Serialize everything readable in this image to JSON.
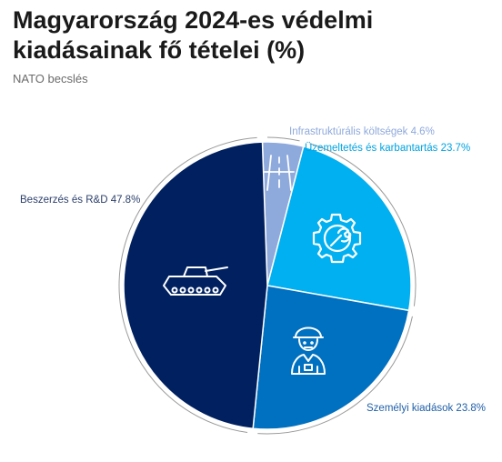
{
  "colors": {
    "title": "#1a1a1a",
    "subtitle": "#6b6b6b",
    "leader": "#9a9a9a"
  },
  "chart_data": {
    "type": "pie",
    "title": "Magyarország 2024-es védelmi kiadásainak fő tételei (%)",
    "subtitle": "NATO becslés",
    "slices": [
      {
        "label": "Infrastruktúrális költségek 4.6%",
        "value": 4.6,
        "color": "#8ea9dc",
        "label_color": "#8ea9dc",
        "icon": "road-icon"
      },
      {
        "label": "Üzemeltetés és karbantartás 23.7%",
        "value": 23.7,
        "color": "#00b0f0",
        "label_color": "#00a3e0",
        "icon": "gear-wrench-icon"
      },
      {
        "label": "Személyi kiadások 23.8%",
        "value": 23.8,
        "color": "#0070c0",
        "label_color": "#1f5fa8",
        "icon": "soldier-icon"
      },
      {
        "label": "Beszerzés és R&D 47.8%",
        "value": 47.8,
        "color": "#002060",
        "label_color": "#2b3f6b",
        "icon": "tank-icon"
      }
    ]
  }
}
